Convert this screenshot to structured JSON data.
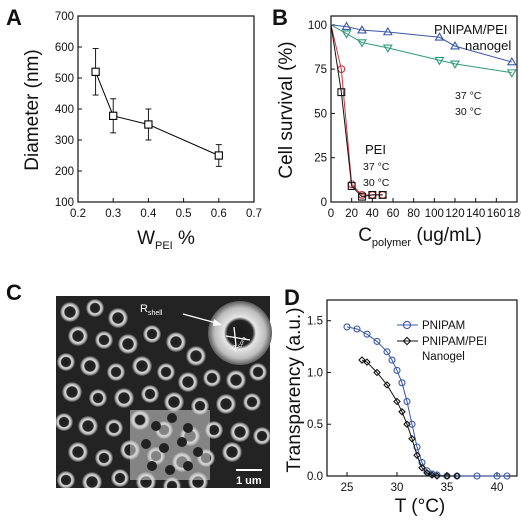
{
  "panel_letters": [
    "A",
    "B",
    "C",
    "D"
  ],
  "chart_data": [
    {
      "panel": "A",
      "type": "line",
      "x": [
        0.25,
        0.3,
        0.4,
        0.6
      ],
      "y": [
        520,
        378,
        350,
        250
      ],
      "y_err": [
        75,
        55,
        50,
        35
      ],
      "xlabel_main": "W",
      "xlabel_sub": "PEI",
      "xlabel_suffix": " %",
      "ylabel": "Diameter (nm)",
      "xlim": [
        0.2,
        0.7
      ],
      "ylim": [
        100,
        700
      ],
      "xticks": [
        "0.2",
        "0.3",
        "0.4",
        "0.5",
        "0.6",
        "0.7"
      ],
      "yticks": [
        "100",
        "200",
        "300",
        "400",
        "500",
        "600",
        "700"
      ],
      "marker": "square",
      "color": "#000000"
    },
    {
      "panel": "B",
      "type": "line",
      "xlabel_main": "C",
      "xlabel_sub": "polymer",
      "xlabel_suffix": " (ug/mL)",
      "ylabel": "Cell survival (%)",
      "xlim": [
        0,
        180
      ],
      "ylim": [
        0,
        105
      ],
      "xticks": [
        "0",
        "20",
        "40",
        "60",
        "80",
        "100",
        "120",
        "140",
        "160",
        "180"
      ],
      "yticks": [
        "0",
        "25",
        "50",
        "75",
        "100"
      ],
      "series": [
        {
          "color": "#3a57a6",
          "marker": "triangle-up",
          "x": [
            0,
            15,
            30,
            55,
            105,
            120,
            175
          ],
          "y": [
            100,
            99,
            97,
            96,
            93,
            88,
            79
          ]
        },
        {
          "color": "#2f9a7a",
          "marker": "triangle-down",
          "x": [
            0,
            15,
            30,
            55,
            105,
            120,
            175
          ],
          "y": [
            100,
            95,
            90,
            87,
            80,
            78,
            73
          ]
        },
        {
          "color": "#c8323c",
          "marker": "circle",
          "x": [
            0,
            10,
            20,
            30,
            40,
            50
          ],
          "y": [
            100,
            75,
            10,
            4,
            4,
            4
          ]
        },
        {
          "color": "#111111",
          "marker": "square",
          "x": [
            0,
            10,
            20,
            30,
            40,
            50
          ],
          "y": [
            100,
            62,
            9,
            3,
            4,
            4
          ]
        }
      ],
      "annotations": {
        "nanogel_line1": "PNIPAM/PEI",
        "nanogel_line2": "nanogel",
        "nanogel_temp1": "37 °C",
        "nanogel_temp2": "30 °C",
        "pei_label": "PEI",
        "pei_temp1": "37 °C",
        "pei_temp2": "30 °C"
      }
    },
    {
      "panel": "D",
      "type": "line",
      "xlabel": "T (°C)",
      "ylabel": "Transparency (a.u.)",
      "xlim": [
        23,
        42
      ],
      "ylim": [
        0,
        1.7
      ],
      "xticks": [
        "25",
        "30",
        "35",
        "40"
      ],
      "yticks": [
        "0.0",
        "0.5",
        "1.0",
        "1.5"
      ],
      "series": [
        {
          "name": "PNIPAM",
          "color": "#3a57a6",
          "marker": "circle",
          "x": [
            25,
            26,
            27,
            28,
            29,
            29.5,
            30,
            30.5,
            31,
            31.5,
            32,
            32.5,
            33,
            33.5,
            34,
            35,
            36,
            38,
            40,
            41
          ],
          "y": [
            1.44,
            1.42,
            1.37,
            1.3,
            1.2,
            1.12,
            1.02,
            0.9,
            0.72,
            0.5,
            0.28,
            0.13,
            0.05,
            0.02,
            0.01,
            0.0,
            0.0,
            0.0,
            0.0,
            0.0
          ]
        },
        {
          "name": "PNIPAM/PEI\nNanogel",
          "color": "#111111",
          "marker": "diamond",
          "x": [
            26.5,
            27,
            28,
            29,
            30,
            30.5,
            31,
            31.5,
            32,
            32.5,
            33,
            33.5,
            34,
            35,
            36
          ],
          "y": [
            1.12,
            1.1,
            1.0,
            0.88,
            0.72,
            0.62,
            0.5,
            0.36,
            0.2,
            0.08,
            0.03,
            0.01,
            0.0,
            0.0,
            0.0
          ]
        }
      ]
    }
  ],
  "micrograph": {
    "label_shell": "R",
    "label_shell_sub": "shell",
    "label_core": "R",
    "label_core_sub": "core",
    "scale_bar": "1 um"
  }
}
